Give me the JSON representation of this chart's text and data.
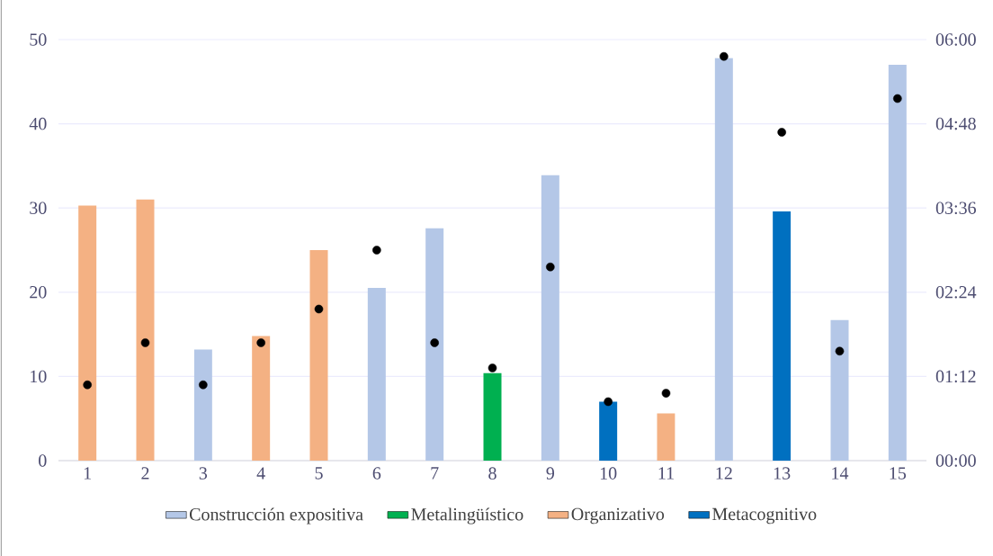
{
  "chart_data": {
    "type": "bar",
    "categories": [
      "1",
      "2",
      "3",
      "4",
      "5",
      "6",
      "7",
      "8",
      "9",
      "10",
      "11",
      "12",
      "13",
      "14",
      "15"
    ],
    "series": [
      {
        "name": "Construcción expositiva",
        "color": "#b4c7e7",
        "values": [
          null,
          null,
          13.2,
          null,
          null,
          20.5,
          27.6,
          null,
          33.9,
          null,
          null,
          47.8,
          null,
          16.7,
          47.0
        ]
      },
      {
        "name": "Metalingüístico",
        "color": "#00b050",
        "values": [
          null,
          null,
          null,
          null,
          null,
          null,
          null,
          10.4,
          null,
          null,
          null,
          null,
          null,
          null,
          null
        ]
      },
      {
        "name": "Organizativo",
        "color": "#f4b183",
        "values": [
          30.3,
          31.0,
          null,
          14.8,
          25.0,
          null,
          null,
          null,
          null,
          null,
          5.6,
          null,
          null,
          null,
          null
        ]
      },
      {
        "name": "Metacognitivo",
        "color": "#0070c0",
        "values": [
          null,
          null,
          null,
          null,
          null,
          null,
          null,
          null,
          null,
          7.0,
          null,
          null,
          29.6,
          null,
          null
        ]
      },
      {
        "type": "scatter",
        "axis": "y2",
        "marker": "circle",
        "color": "#000000",
        "values": [
          1.08,
          1.68,
          1.08,
          1.68,
          2.16,
          3.0,
          1.68,
          1.32,
          2.76,
          0.84,
          0.96,
          5.76,
          4.68,
          1.56,
          5.16
        ]
      }
    ],
    "ylim": [
      0,
      50
    ],
    "yticks": [
      0,
      10,
      20,
      30,
      40,
      50
    ],
    "y2lim": [
      0,
      6
    ],
    "y2ticks": [
      {
        "value": 0,
        "label": "00:00"
      },
      {
        "value": 1.2,
        "label": "01:12"
      },
      {
        "value": 2.4,
        "label": "02:24"
      },
      {
        "value": 3.6,
        "label": "03:36"
      },
      {
        "value": 4.8,
        "label": "04:48"
      },
      {
        "value": 6,
        "label": "06:00"
      }
    ],
    "grid": "y",
    "legend": "bottom"
  }
}
